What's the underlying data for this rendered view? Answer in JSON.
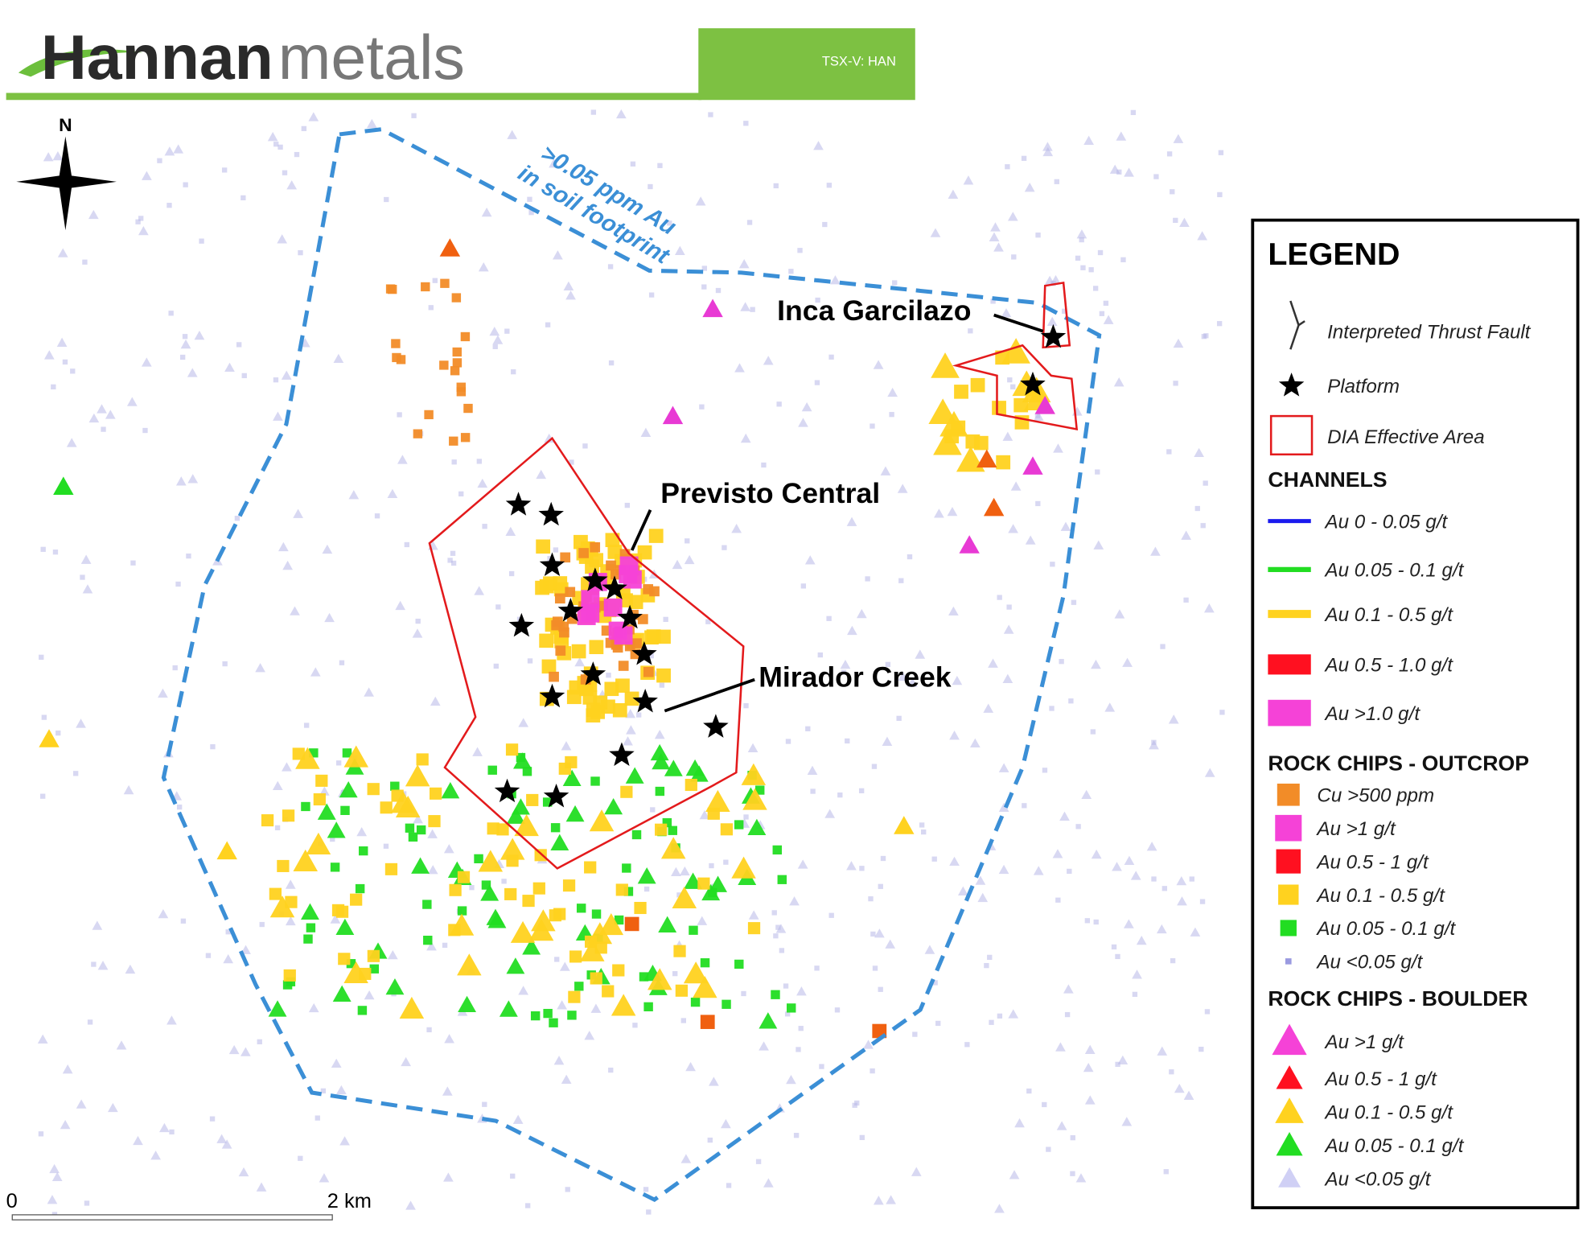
{
  "header": {
    "brand_bold": "Hannan",
    "brand_light": "metals",
    "ticker": "TSX-V: HAN"
  },
  "map": {
    "north": "N",
    "soil_footprint": [
      ">0.05 ppm Au",
      "in soil footprint"
    ],
    "labels": [
      "Inca Garcilazo",
      "Previsto Central",
      "Mirador Creek"
    ],
    "scale": [
      "0",
      "2 km"
    ]
  },
  "legend": {
    "title": "LEGEND",
    "items": [
      "Interpreted Thrust Fault",
      "Platform",
      "DIA Effective Area"
    ],
    "sections": [
      {
        "title": "CHANNELS",
        "items": [
          "Au 0 - 0.05 g/t",
          "Au 0.05 - 0.1 g/t",
          "Au 0.1 - 0.5 g/t",
          "Au 0.5 - 1.0 g/t",
          "Au >1.0 g/t"
        ]
      },
      {
        "title": "ROCK CHIPS - OUTCROP",
        "items": [
          "Cu >500 ppm",
          "Au >1 g/t",
          "Au 0.5 - 1 g/t",
          "Au 0.1 - 0.5 g/t",
          "Au 0.05 - 0.1 g/t",
          "Au <0.05 g/t"
        ]
      },
      {
        "title": "ROCK CHIPS - BOULDER",
        "items": [
          "Au >1 g/t",
          "Au 0.5 - 1 g/t",
          "Au 0.1 - 0.5 g/t",
          "Au 0.05 - 0.1 g/t",
          "Au <0.05 g/t"
        ]
      }
    ]
  }
}
